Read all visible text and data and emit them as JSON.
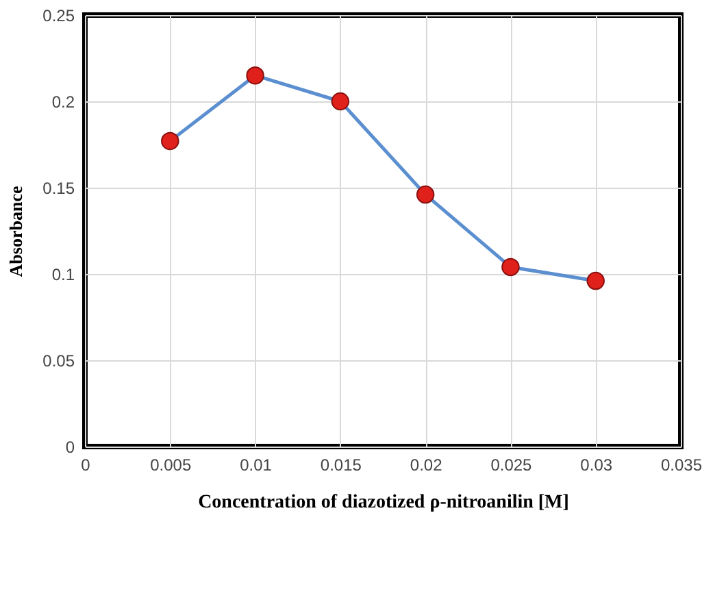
{
  "chart_data": {
    "type": "line",
    "xlabel": "Concentration of diazotized ρ-nitroanilin [M]",
    "ylabel": "Absorbance",
    "x": [
      0.005,
      0.01,
      0.015,
      0.02,
      0.025,
      0.03
    ],
    "series": [
      {
        "color": "#5b8fd0",
        "colors": [
          "#e0201b",
          "#e0201b",
          "#e0201b",
          "#e0201b",
          "#e0201b",
          "#e0201b"
        ],
        "values": [
          0.177,
          0.215,
          0.2,
          0.146,
          0.104,
          0.096
        ]
      }
    ],
    "marker": "circle",
    "line_style": "solid",
    "xlim": [
      0,
      0.035
    ],
    "xticks": [
      0,
      0.005,
      0.01,
      0.015,
      0.02,
      0.025,
      0.03,
      0.035
    ],
    "ylim": [
      0,
      0.25
    ],
    "yticks": [
      0,
      0.05,
      0.1,
      0.15,
      0.2,
      0.25
    ],
    "grid": true
  }
}
